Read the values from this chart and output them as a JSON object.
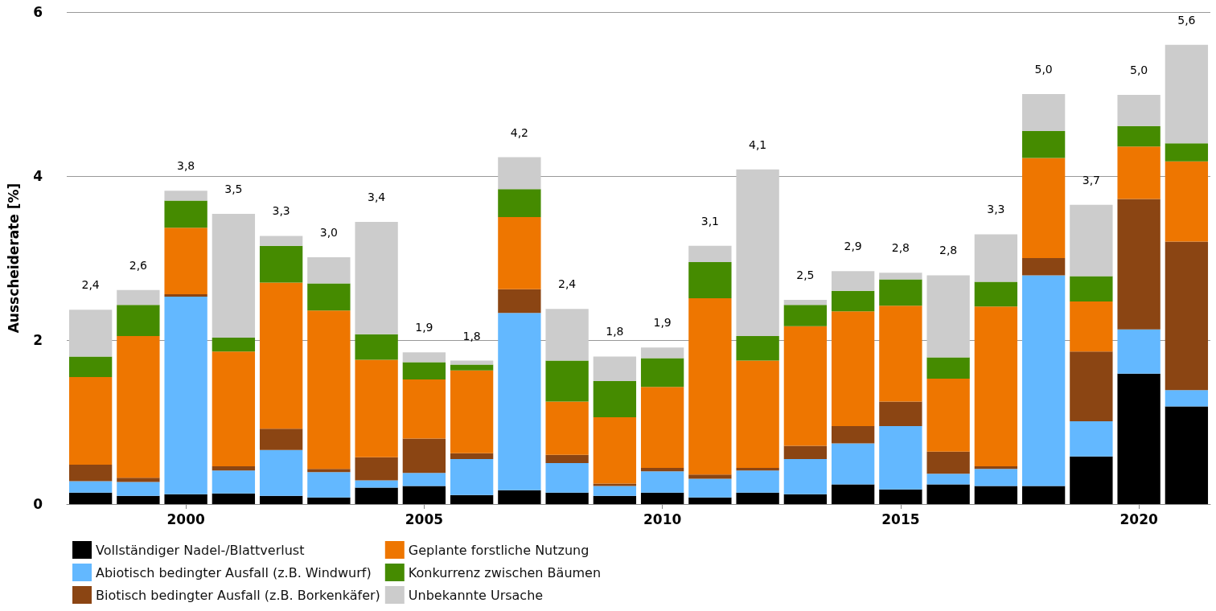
{
  "chart_data": {
    "type": "bar",
    "stacked": true,
    "ylabel": "Ausscheiderate [%]",
    "x": [
      1998,
      1999,
      2000,
      2001,
      2002,
      2003,
      2004,
      2005,
      2006,
      2007,
      2008,
      2009,
      2010,
      2011,
      2012,
      2013,
      2014,
      2015,
      2016,
      2017,
      2018,
      2019,
      2020,
      2021
    ],
    "xlim": [
      1997.5,
      2021.5
    ],
    "xticks": [
      2000,
      2005,
      2010,
      2015,
      2020
    ],
    "ylim": [
      0,
      6
    ],
    "yticks": [
      0,
      2,
      4,
      6
    ],
    "grid": "y",
    "legend": "bottom",
    "series": [
      {
        "name": "Vollständiger Nadel-/Blattverlust",
        "color": "#000000",
        "values": [
          0.14,
          0.1,
          0.12,
          0.13,
          0.1,
          0.08,
          0.2,
          0.22,
          0.11,
          0.17,
          0.14,
          0.1,
          0.14,
          0.08,
          0.14,
          0.12,
          0.24,
          0.18,
          0.24,
          0.22,
          0.22,
          0.58,
          1.59,
          1.19
        ]
      },
      {
        "name": "Abiotisch bedingter Ausfall (z.B. Windwurf)",
        "color": "#63b8ff",
        "values": [
          0.14,
          0.17,
          2.41,
          0.28,
          0.56,
          0.31,
          0.09,
          0.16,
          0.44,
          2.16,
          0.36,
          0.12,
          0.26,
          0.23,
          0.27,
          0.43,
          0.5,
          0.77,
          0.13,
          0.21,
          2.57,
          0.43,
          0.54,
          0.2
        ]
      },
      {
        "name": "Biotisch bedingter Ausfall (z.B. Borkenkäfer)",
        "color": "#8b4513",
        "values": [
          0.2,
          0.05,
          0.03,
          0.05,
          0.26,
          0.04,
          0.28,
          0.42,
          0.07,
          0.29,
          0.1,
          0.03,
          0.04,
          0.05,
          0.03,
          0.16,
          0.21,
          0.3,
          0.27,
          0.03,
          0.21,
          0.85,
          1.59,
          1.81
        ]
      },
      {
        "name": "Geplante forstliche Nutzung",
        "color": "#ee7600",
        "values": [
          1.07,
          1.73,
          0.81,
          1.4,
          1.78,
          1.93,
          1.19,
          0.72,
          1.01,
          0.88,
          0.65,
          0.81,
          0.99,
          2.15,
          1.31,
          1.46,
          1.4,
          1.17,
          0.89,
          1.95,
          1.22,
          0.61,
          0.64,
          0.98
        ]
      },
      {
        "name": "Konkurrenz zwischen Bäumen",
        "color": "#458b00",
        "values": [
          0.25,
          0.38,
          0.33,
          0.17,
          0.45,
          0.33,
          0.31,
          0.21,
          0.07,
          0.34,
          0.5,
          0.44,
          0.35,
          0.44,
          0.3,
          0.26,
          0.25,
          0.32,
          0.26,
          0.3,
          0.33,
          0.31,
          0.25,
          0.22
        ]
      },
      {
        "name": "Unbekannte Ursache",
        "color": "#cccccc",
        "values": [
          0.57,
          0.18,
          0.12,
          1.51,
          0.12,
          0.32,
          1.37,
          0.12,
          0.05,
          0.39,
          0.63,
          0.3,
          0.13,
          0.2,
          2.03,
          0.06,
          0.24,
          0.08,
          1.0,
          0.58,
          0.45,
          0.87,
          0.38,
          1.2
        ]
      }
    ],
    "totals": [
      "2,4",
      "2,6",
      "3,8",
      "3,5",
      "3,3",
      "3,0",
      "3,4",
      "1,9",
      "1,8",
      "4,2",
      "2,4",
      "1,8",
      "1,9",
      "3,1",
      "4,1",
      "2,5",
      "2,9",
      "2,8",
      "2,8",
      "3,3",
      "5,0",
      "3,7",
      "5,0",
      "5,6"
    ]
  }
}
